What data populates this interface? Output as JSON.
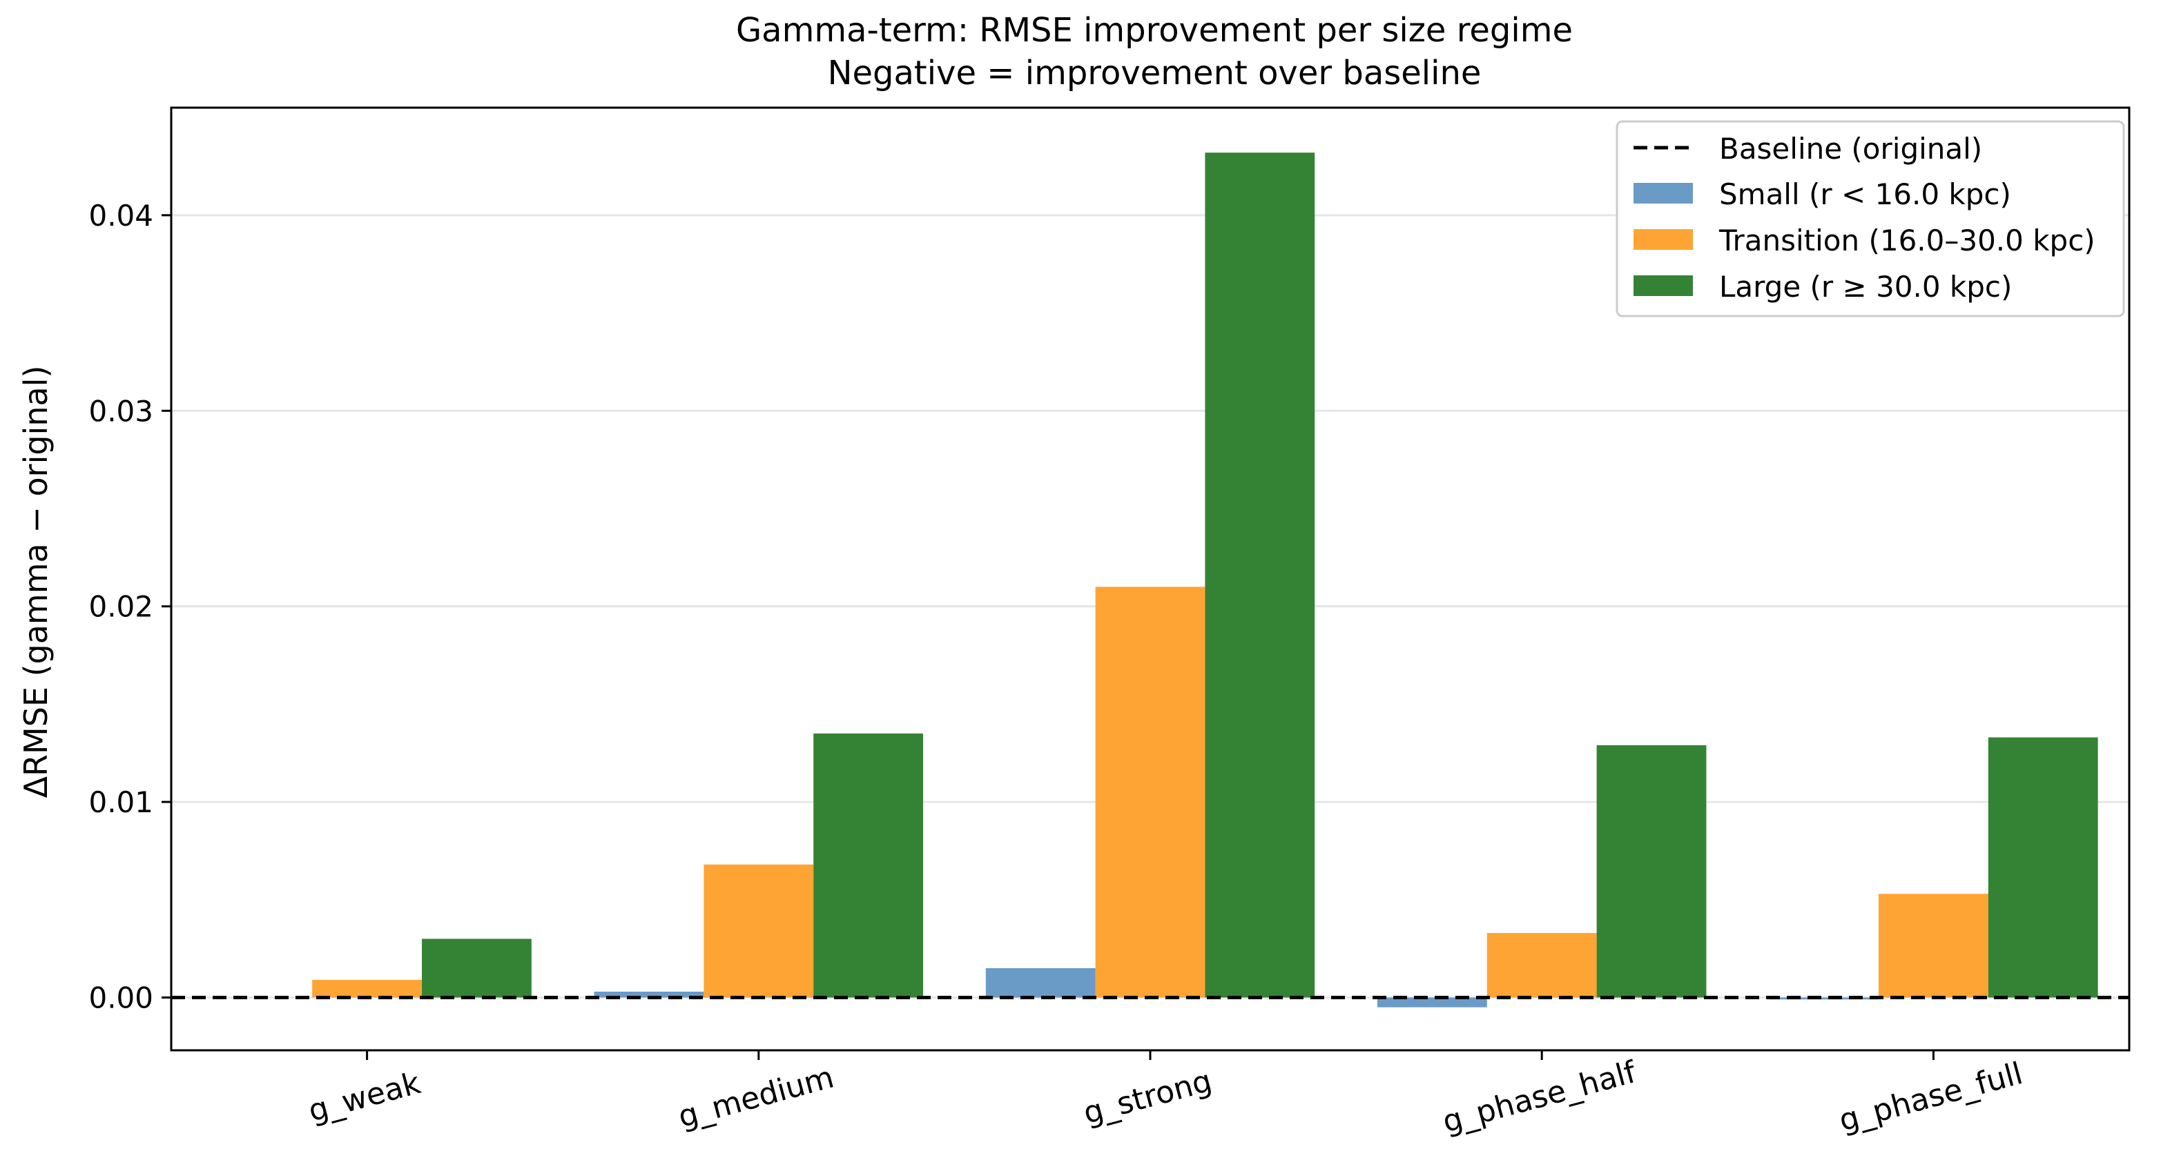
{
  "chart_data": {
    "type": "bar",
    "title": "Gamma-term: RMSE improvement per size regime",
    "subtitle": "Negative = improvement over baseline",
    "xlabel": "",
    "ylabel": "ΔRMSE (gamma − original)",
    "categories": [
      "g_weak",
      "g_medium",
      "g_strong",
      "g_phase_half",
      "g_phase_full"
    ],
    "series": [
      {
        "name": "Small (r < 16.0 kpc)",
        "color": "#6a9bc7",
        "values": [
          0.0,
          0.0003,
          0.0015,
          -0.0005,
          -0.0001
        ]
      },
      {
        "name": "Transition (16.0–30.0 kpc)",
        "color": "#fea435",
        "values": [
          0.0009,
          0.0068,
          0.021,
          0.0033,
          0.0053
        ]
      },
      {
        "name": "Large (r ≥ 30.0 kpc)",
        "color": "#348334",
        "values": [
          0.003,
          0.0135,
          0.0432,
          0.0129,
          0.0133
        ]
      }
    ],
    "baseline": {
      "name": "Baseline (original)",
      "value": 0.0,
      "style": "dashed",
      "color": "#000000"
    },
    "yticks": [
      0.0,
      0.01,
      0.02,
      0.03,
      0.04
    ],
    "ytick_labels": [
      "0.00",
      "0.01",
      "0.02",
      "0.03",
      "0.04"
    ],
    "ylim": [
      -0.0027,
      0.0455
    ],
    "grid": "horizontal",
    "legend_position": "top-right"
  }
}
